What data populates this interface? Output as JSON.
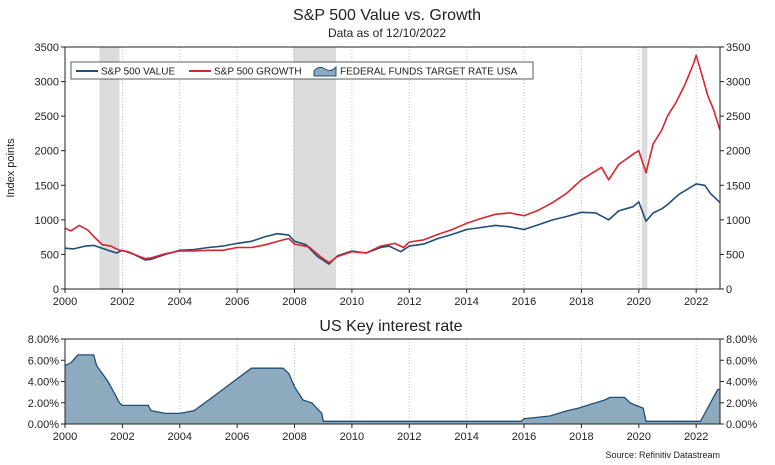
{
  "chart_data": [
    {
      "type": "line",
      "title": "S&P 500 Value vs. Growth",
      "subtitle": "Data as of 12/10/2022",
      "ylabel": "Index points",
      "xlim": [
        2000,
        2022.83
      ],
      "ylim": [
        0,
        3500
      ],
      "x_ticks": [
        "2000",
        "2002",
        "2004",
        "2006",
        "2008",
        "2010",
        "2012",
        "2014",
        "2016",
        "2018",
        "2020",
        "2022"
      ],
      "y_ticks": [
        "0",
        "500",
        "1000",
        "1500",
        "2000",
        "2500",
        "3000",
        "3500"
      ],
      "grid": "vertical dotted",
      "legend_position": "top-left",
      "legend": [
        "S&P 500 VALUE",
        "S&P 500 GROWTH",
        "FEDERAL FUNDS TARGET RATE USA"
      ],
      "shaded_periods": [
        [
          2001.2,
          2001.9
        ],
        [
          2007.95,
          2009.45
        ],
        [
          2020.1,
          2020.3
        ]
      ],
      "series": [
        {
          "name": "S&P 500 VALUE",
          "color": "#1f4e79",
          "x": [
            2000.0,
            2000.3,
            2000.7,
            2001.0,
            2001.5,
            2001.8,
            2002.0,
            2002.4,
            2002.8,
            2003.0,
            2003.5,
            2004.0,
            2004.5,
            2005.0,
            2005.5,
            2006.0,
            2006.5,
            2007.0,
            2007.4,
            2007.8,
            2008.0,
            2008.4,
            2008.8,
            2009.2,
            2009.5,
            2010.0,
            2010.5,
            2011.0,
            2011.3,
            2011.7,
            2012.0,
            2012.5,
            2013.0,
            2013.5,
            2014.0,
            2014.5,
            2015.0,
            2015.5,
            2016.0,
            2016.5,
            2017.0,
            2017.5,
            2018.0,
            2018.5,
            2018.95,
            2019.3,
            2019.8,
            2020.0,
            2020.25,
            2020.5,
            2020.8,
            2021.0,
            2021.4,
            2021.8,
            2022.0,
            2022.3,
            2022.5,
            2022.83
          ],
          "values": [
            590,
            580,
            620,
            630,
            560,
            520,
            560,
            500,
            420,
            430,
            500,
            560,
            570,
            600,
            620,
            660,
            690,
            760,
            800,
            780,
            690,
            640,
            470,
            360,
            480,
            550,
            520,
            600,
            620,
            540,
            620,
            650,
            730,
            790,
            860,
            890,
            920,
            900,
            860,
            930,
            1000,
            1050,
            1110,
            1100,
            1000,
            1130,
            1190,
            1260,
            980,
            1100,
            1160,
            1220,
            1370,
            1470,
            1520,
            1500,
            1380,
            1250
          ]
        },
        {
          "name": "S&P 500 GROWTH",
          "color": "#d7262e",
          "x": [
            2000.0,
            2000.2,
            2000.5,
            2000.8,
            2001.0,
            2001.3,
            2001.6,
            2001.9,
            2002.2,
            2002.6,
            2002.8,
            2003.0,
            2003.5,
            2004.0,
            2004.5,
            2005.0,
            2005.5,
            2006.0,
            2006.5,
            2007.0,
            2007.5,
            2007.8,
            2008.0,
            2008.5,
            2008.9,
            2009.2,
            2009.5,
            2010.0,
            2010.5,
            2011.0,
            2011.5,
            2011.8,
            2012.0,
            2012.5,
            2013.0,
            2013.5,
            2014.0,
            2014.5,
            2015.0,
            2015.5,
            2016.0,
            2016.5,
            2017.0,
            2017.5,
            2018.0,
            2018.7,
            2018.95,
            2019.3,
            2019.8,
            2020.0,
            2020.25,
            2020.5,
            2020.8,
            2021.0,
            2021.3,
            2021.6,
            2021.9,
            2022.0,
            2022.2,
            2022.4,
            2022.6,
            2022.83
          ],
          "values": [
            880,
            840,
            920,
            850,
            760,
            640,
            620,
            560,
            540,
            470,
            440,
            450,
            510,
            550,
            550,
            560,
            560,
            600,
            600,
            640,
            700,
            730,
            650,
            610,
            470,
            380,
            470,
            540,
            520,
            620,
            660,
            600,
            680,
            710,
            790,
            860,
            950,
            1020,
            1080,
            1100,
            1060,
            1140,
            1250,
            1390,
            1580,
            1760,
            1580,
            1800,
            1950,
            2000,
            1680,
            2100,
            2300,
            2500,
            2700,
            2950,
            3250,
            3380,
            3100,
            2800,
            2600,
            2300
          ]
        }
      ]
    },
    {
      "type": "area",
      "title": "US Key interest rate",
      "xlim": [
        2000,
        2022.83
      ],
      "ylim": [
        0,
        8
      ],
      "x_ticks": [
        "2000",
        "2002",
        "2004",
        "2006",
        "2008",
        "2010",
        "2012",
        "2014",
        "2016",
        "2018",
        "2020",
        "2022"
      ],
      "y_ticks": [
        "0.00%",
        "2.00%",
        "4.00%",
        "6.00%",
        "8.00%"
      ],
      "series": [
        {
          "name": "FEDERAL FUNDS TARGET RATE USA",
          "color": "#8eaabe",
          "x": [
            2000.0,
            2000.2,
            2000.45,
            2001.0,
            2001.1,
            2001.5,
            2001.9,
            2002.0,
            2002.9,
            2003.0,
            2003.5,
            2004.0,
            2004.5,
            2005.0,
            2005.5,
            2006.0,
            2006.5,
            2007.6,
            2007.8,
            2008.0,
            2008.3,
            2008.6,
            2008.95,
            2009.0,
            2015.9,
            2016.0,
            2016.9,
            2017.2,
            2017.5,
            2017.9,
            2018.2,
            2018.5,
            2018.8,
            2019.0,
            2019.5,
            2019.7,
            2019.9,
            2020.15,
            2020.25,
            2022.15,
            2022.3,
            2022.45,
            2022.6,
            2022.75,
            2022.83
          ],
          "values": [
            5.5,
            5.75,
            6.5,
            6.5,
            5.5,
            4.0,
            2.0,
            1.75,
            1.75,
            1.25,
            1.0,
            1.0,
            1.25,
            2.25,
            3.25,
            4.25,
            5.25,
            5.25,
            4.75,
            3.5,
            2.25,
            2.0,
            1.0,
            0.25,
            0.25,
            0.5,
            0.75,
            1.0,
            1.25,
            1.5,
            1.75,
            2.0,
            2.25,
            2.5,
            2.5,
            2.0,
            1.75,
            1.5,
            0.25,
            0.25,
            1.0,
            1.75,
            2.5,
            3.25,
            3.25
          ]
        }
      ],
      "source": "Source: Refinitiv Datastream"
    }
  ]
}
